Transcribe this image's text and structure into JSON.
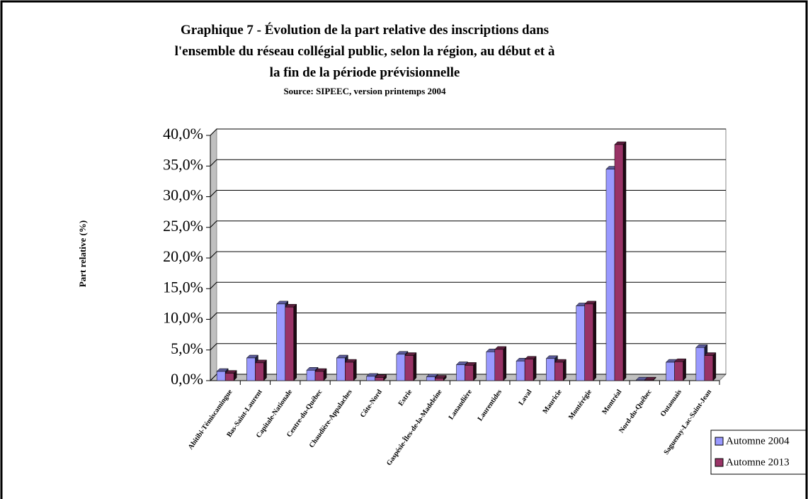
{
  "chart_data": {
    "type": "bar",
    "title": "Graphique 7 - Évolution de la part relative des inscriptions dans l'ensemble du réseau collégial public, selon la région, au début et à la fin de la période prévisionnelle",
    "subtitle": "Source: SIPEEC, version printemps 2004",
    "y_label": "Part relative (%)",
    "categories": [
      "Abitibi-Témiscamingue",
      "Bas-Saint-Laurent",
      "Capitale-Nationale",
      "Centre-du-Québec",
      "Chaudière-Appalaches",
      "Côte-Nord",
      "Estrie",
      "Gaspésie-Îles-de-la-Madeleine",
      "Lanaudière",
      "Laurentides",
      "Laval",
      "Mauricie",
      "Montérégie",
      "Montréal",
      "Nord-du-Québec",
      "Outaouais",
      "Saguenay-Lac-Saint-Jean"
    ],
    "series": [
      {
        "name": "Automne 2004",
        "color": "#9999ff",
        "values": [
          1.5,
          3.7,
          12.5,
          1.7,
          3.7,
          0.7,
          4.3,
          0.6,
          2.6,
          4.7,
          3.2,
          3.6,
          12.2,
          34.5,
          0.1,
          3.0,
          5.4
        ]
      },
      {
        "name": "Automne 2013",
        "color": "#993366",
        "values": [
          1.2,
          2.9,
          12.0,
          1.5,
          3.0,
          0.5,
          4.1,
          0.4,
          2.5,
          5.1,
          3.5,
          3.0,
          12.5,
          38.5,
          0.1,
          3.1,
          4.1
        ]
      }
    ],
    "ylim": [
      0,
      40
    ],
    "yticks": [
      {
        "value": 0,
        "label": "0,0%"
      },
      {
        "value": 5,
        "label": "5,0%"
      },
      {
        "value": 10,
        "label": "10,0%"
      },
      {
        "value": 15,
        "label": "15,0%"
      },
      {
        "value": 20,
        "label": "20,0%"
      },
      {
        "value": 25,
        "label": "25,0%"
      },
      {
        "value": 30,
        "label": "30,0%"
      },
      {
        "value": 35,
        "label": "35,0%"
      },
      {
        "value": 40,
        "label": "40,0%"
      }
    ],
    "grid": true,
    "legend": "bottom-right"
  }
}
